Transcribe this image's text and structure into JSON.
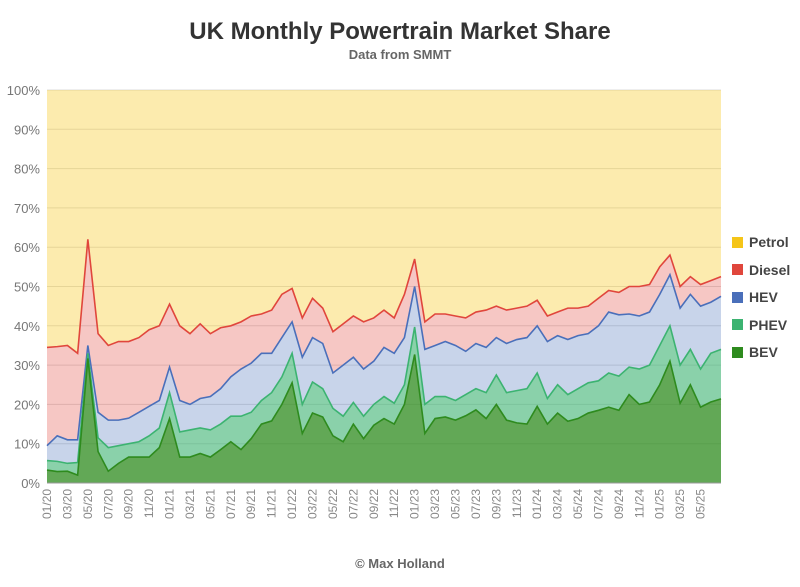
{
  "title": "UK Monthly Powertrain Market Share",
  "subtitle": "Data from SMMT",
  "credit": "© Max Holland",
  "chart_data": {
    "type": "area",
    "stacked": true,
    "title": "UK Monthly Powertrain Market Share",
    "subtitle": "Data from SMMT",
    "xlabel": "",
    "ylabel": "",
    "ylim": [
      0,
      100
    ],
    "y_ticks": [
      "0%",
      "10%",
      "20%",
      "30%",
      "40%",
      "50%",
      "60%",
      "70%",
      "80%",
      "90%",
      "100%"
    ],
    "x_tick_labels": [
      "01/20",
      "03/20",
      "05/20",
      "07/20",
      "09/20",
      "11/20",
      "01/21",
      "03/21",
      "05/21",
      "07/21",
      "09/21",
      "11/21",
      "01/22",
      "03/22",
      "05/22",
      "07/22",
      "09/22",
      "11/22",
      "01/23",
      "03/23",
      "05/23",
      "07/23",
      "09/23",
      "11/23",
      "01/24",
      "03/24",
      "05/24",
      "07/24",
      "09/24",
      "11/24",
      "01/25",
      "03/25",
      "05/25"
    ],
    "legend_position": "right",
    "grid": true,
    "series": [
      {
        "name": "BEV",
        "color": "#2e8b1e",
        "values": [
          3.3,
          2.9,
          3,
          2,
          31.7,
          8,
          3,
          5,
          6.6,
          6.6,
          6.6,
          9,
          16.4,
          6.6,
          6.6,
          7.5,
          6.6,
          8.5,
          10.5,
          8.5,
          11.3,
          15,
          15.8,
          20,
          25.5,
          12.6,
          17.8,
          16.8,
          12,
          10.5,
          15,
          11.3,
          14.7,
          16.4,
          15,
          20,
          32.7,
          12.6,
          16.4,
          16.8,
          16,
          17.1,
          18.6,
          16.4,
          20,
          16,
          15.3,
          15,
          19.5,
          15,
          17.8,
          15.7,
          16.4,
          17.8,
          18.5,
          19.3,
          18.5,
          22.5,
          20,
          20.6,
          25,
          31,
          20.3,
          25,
          19.3,
          20.6,
          21.4
        ]
      },
      {
        "name": "PHEV",
        "color": "#3cb371",
        "values": [
          5.7,
          5.5,
          5,
          5.2,
          33,
          11.5,
          9,
          9.5,
          10,
          10.5,
          12,
          14,
          23,
          13,
          13.5,
          14,
          13.5,
          15,
          17,
          17,
          18,
          21,
          23,
          27,
          33,
          20,
          25.7,
          24,
          19,
          17,
          20.5,
          17,
          20,
          22,
          20.3,
          25,
          39.7,
          20,
          22,
          22,
          21,
          22.5,
          24,
          23,
          27.5,
          23,
          23.5,
          24,
          28,
          21.5,
          25,
          22.5,
          24,
          25.5,
          26,
          28,
          27.2,
          29.5,
          29,
          30,
          35,
          40,
          30,
          34,
          29,
          33,
          34
        ]
      },
      {
        "name": "HEV",
        "color": "#4a6fba",
        "values": [
          9.5,
          12,
          11,
          11,
          35,
          18,
          16,
          16,
          16.5,
          18,
          19.5,
          21,
          29.5,
          21,
          20,
          21.5,
          22,
          24,
          27,
          29,
          30.5,
          33,
          33,
          37,
          41,
          32,
          37,
          35.5,
          28,
          30,
          32,
          29,
          31,
          34.5,
          33,
          37,
          50,
          34,
          35,
          36,
          35,
          33.5,
          35.5,
          34.5,
          37,
          35.5,
          36.5,
          37,
          40,
          36,
          37.5,
          36.5,
          37.5,
          38,
          40,
          43.5,
          42.8,
          43,
          42.5,
          43.5,
          48,
          53,
          44.5,
          48,
          45,
          46,
          47.5
        ]
      },
      {
        "name": "Diesel",
        "color": "#e0463c",
        "values": [
          34.5,
          34.7,
          35,
          33,
          62,
          38,
          35,
          36,
          36,
          37,
          39,
          40,
          45.5,
          40,
          38,
          40.5,
          38,
          39.5,
          40,
          41,
          42.5,
          43,
          44,
          48,
          49.5,
          42,
          47,
          44.5,
          38.5,
          40.5,
          42.5,
          41,
          42,
          44,
          42,
          48,
          57,
          41,
          43,
          43,
          42.5,
          42,
          43.5,
          44,
          45,
          44,
          44.5,
          45,
          46.5,
          42.5,
          43.5,
          44.5,
          44.5,
          45,
          47,
          49,
          48.5,
          50,
          50,
          50.5,
          55,
          58,
          50,
          52.5,
          50.5,
          51.5,
          52.5
        ]
      },
      {
        "name": "Petrol",
        "color": "#f5c518",
        "values": [
          100,
          100,
          100,
          100,
          100,
          100,
          100,
          100,
          100,
          100,
          100,
          100,
          100,
          100,
          100,
          100,
          100,
          100,
          100,
          100,
          100,
          100,
          100,
          100,
          100,
          100,
          100,
          100,
          100,
          100,
          100,
          100,
          100,
          100,
          100,
          100,
          100,
          100,
          100,
          100,
          100,
          100,
          100,
          100,
          100,
          100,
          100,
          100,
          100,
          100,
          100,
          100,
          100,
          100,
          100,
          100,
          100,
          100,
          100,
          100,
          100,
          100,
          100,
          100,
          100,
          100,
          100
        ]
      }
    ],
    "series_note": "values are cumulative stacked tops (%)"
  },
  "legend": [
    {
      "label": "Petrol",
      "color": "#f5c518"
    },
    {
      "label": "Diesel",
      "color": "#e0463c"
    },
    {
      "label": "HEV",
      "color": "#4a6fba"
    },
    {
      "label": "PHEV",
      "color": "#3cb371"
    },
    {
      "label": "BEV",
      "color": "#2e8b1e"
    }
  ]
}
